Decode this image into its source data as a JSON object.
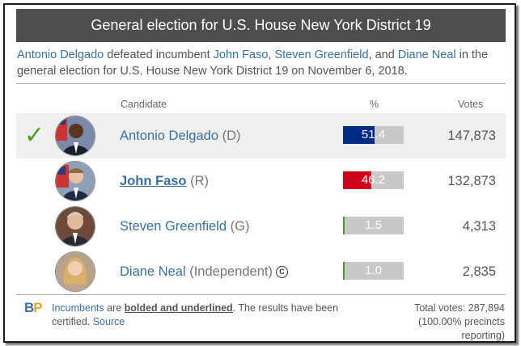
{
  "title": "General election for U.S. House New York District 19",
  "summary": {
    "winner": "Antonio Delgado",
    "t1": " defeated incumbent ",
    "c2": "John Faso",
    "t2": ", ",
    "c3": "Steven Greenfield",
    "t3": ", and ",
    "c4": "Diane Neal",
    "t4": " in the general election for U.S. House New York District 19 on November 6, 2018."
  },
  "headers": {
    "candidate": "Candidate",
    "pct": "%",
    "votes": "Votes"
  },
  "candidates": [
    {
      "name": "Antonio Delgado",
      "party": " (D)",
      "pct": "51.4",
      "pct_value": 51.4,
      "votes": "147,873",
      "color": "#002b84",
      "winner": true,
      "incumbent": false
    },
    {
      "name": "John Faso",
      "party": " (R)",
      "pct": "46.2",
      "pct_value": 46.2,
      "votes": "132,873",
      "color": "#d0021b",
      "winner": false,
      "incumbent": true
    },
    {
      "name": "Steven Greenfield",
      "party": " (G)",
      "pct": "1.5",
      "pct_value": 1.5,
      "votes": "4,313",
      "color": "#4a9b2c",
      "winner": false,
      "incumbent": false
    },
    {
      "name": "Diane Neal",
      "party": " (Independent)",
      "pct": "1.0",
      "pct_value": 1.0,
      "votes": "2,835",
      "color": "#4a9b2c",
      "winner": false,
      "incumbent": false,
      "badge": "C"
    }
  ],
  "footer": {
    "logo_b": "B",
    "logo_p": "P",
    "incumbents": "Incumbents",
    "are": " are ",
    "bolded": "bolded and underlined",
    "rest": ". The results have been certified. ",
    "source": "Source",
    "totals": "Total votes: 287,894 (100.00% precincts reporting)"
  },
  "colors": {
    "winner_check": "#4a9b2c",
    "link": "#3b6f9e",
    "header_bg": "#4e4e4e"
  }
}
